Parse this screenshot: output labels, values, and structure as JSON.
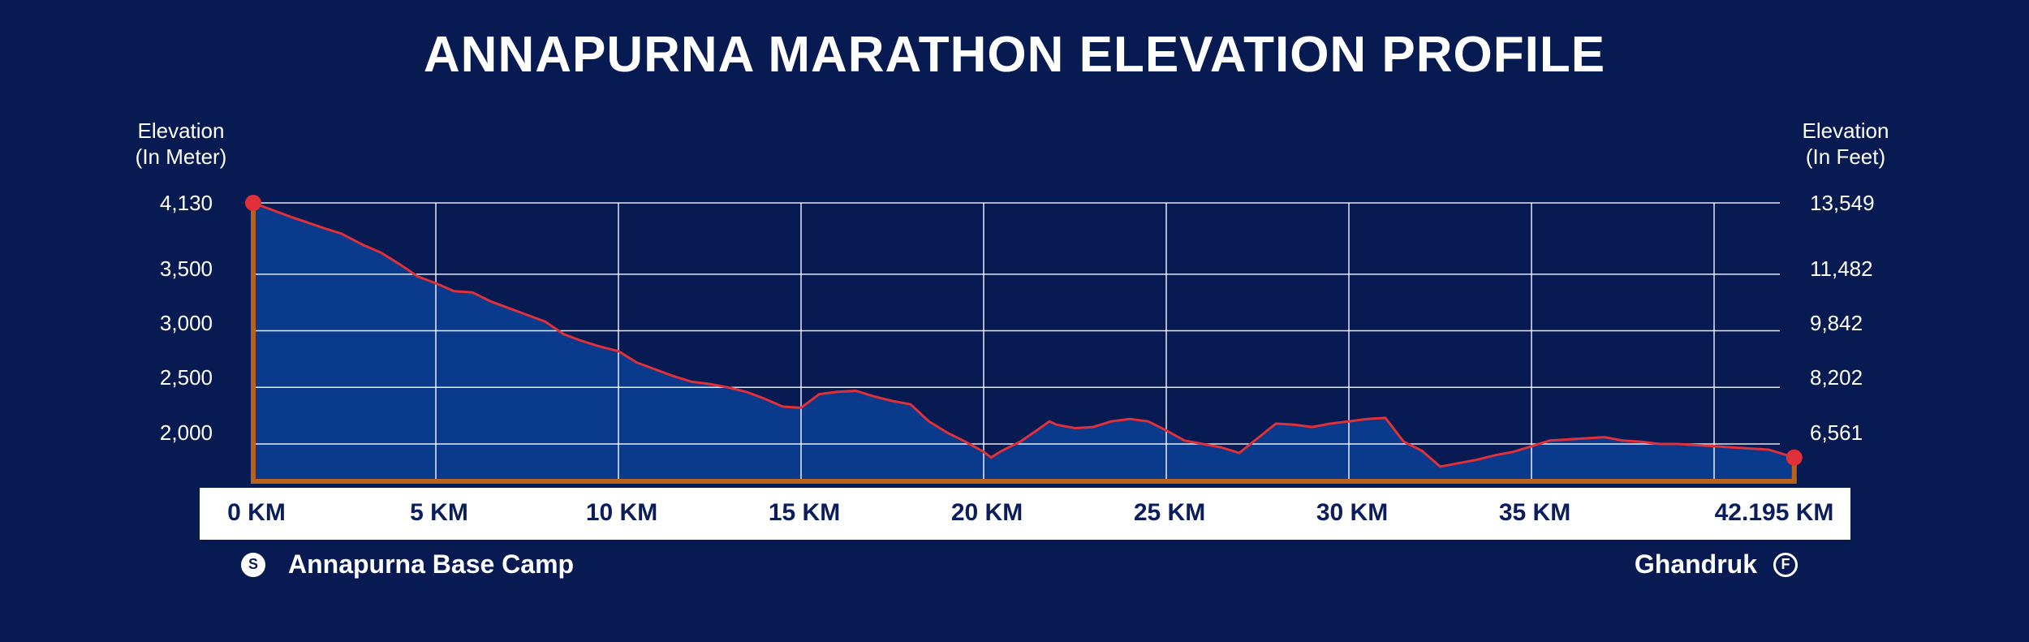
{
  "title": "ANNAPURNA MARATHON ELEVATION PROFILE",
  "colors": {
    "background": "#081a52",
    "area_fill": "#0a3a8c",
    "line": "#e0303a",
    "axis": "#b8621e",
    "grid": "#ffffff",
    "marker": "#e0303a"
  },
  "left_axis": {
    "title_line1": "Elevation",
    "title_line2": "(In Meter)",
    "ticks": [
      "4,130",
      "3,500",
      "3,000",
      "2,500",
      "2,000"
    ]
  },
  "right_axis": {
    "title_line1": "Elevation",
    "title_line2": "(In Feet)",
    "ticks": [
      "13,549",
      "11,482",
      "9,842",
      "8,202",
      "6,561"
    ]
  },
  "x_axis": {
    "labels": [
      "0 KM",
      "5 KM",
      "10 KM",
      "15 KM",
      "20 KM",
      "25 KM",
      "30 KM",
      "35 KM",
      "42.195 KM"
    ]
  },
  "start": {
    "badge": "S",
    "name": "Annapurna Base Camp"
  },
  "finish": {
    "badge": "F",
    "name": "Ghandruk"
  },
  "chart_data": {
    "type": "area",
    "xlabel": "",
    "ylabel": "Elevation (In Meter)",
    "ylim": [
      1670,
      4130
    ],
    "xlim": [
      0,
      42.195
    ],
    "x_ticks": [
      0,
      5,
      10,
      15,
      20,
      25,
      30,
      35,
      40
    ],
    "y_ticks_m": [
      4130,
      3500,
      3000,
      2500,
      2000
    ],
    "y_ticks_ft": [
      13549,
      11482,
      9842,
      8202,
      6561
    ],
    "grid": true,
    "series": [
      {
        "x": [
          0,
          1,
          2,
          2.4,
          3,
          3.5,
          4,
          4.5,
          5,
          5.5,
          6,
          6.5,
          7,
          7.5,
          8,
          8.5,
          9,
          9.5,
          10,
          10.5,
          11,
          11.5,
          12,
          12.5,
          13,
          13.5,
          14,
          14.5,
          15,
          15.5,
          16,
          16.5,
          17,
          17.5,
          18,
          18.5,
          19,
          19.5,
          20,
          20.2,
          20.5,
          21,
          21.5,
          21.8,
          22,
          22.5,
          23,
          23.5,
          24,
          24.5,
          25,
          25.5,
          26,
          26.5,
          27,
          27.5,
          28,
          28.5,
          29,
          29.5,
          30,
          30.5,
          31,
          31.5,
          32,
          32.5,
          33,
          33.5,
          34,
          34.5,
          35,
          35.5,
          36,
          36.5,
          37,
          37.5,
          38,
          38.5,
          39,
          39.5,
          40,
          40.5,
          41,
          41.5,
          42.195
        ],
        "y": [
          4130,
          4010,
          3900,
          3860,
          3760,
          3690,
          3590,
          3480,
          3420,
          3350,
          3340,
          3260,
          3200,
          3140,
          3080,
          2970,
          2910,
          2860,
          2820,
          2720,
          2660,
          2600,
          2550,
          2530,
          2500,
          2460,
          2400,
          2330,
          2320,
          2440,
          2460,
          2470,
          2420,
          2380,
          2350,
          2200,
          2100,
          2020,
          1930,
          1880,
          1940,
          2020,
          2130,
          2200,
          2170,
          2140,
          2150,
          2200,
          2220,
          2200,
          2120,
          2030,
          2000,
          1970,
          1920,
          2050,
          2180,
          2170,
          2150,
          2180,
          2200,
          2220,
          2230,
          2020,
          1940,
          1800,
          1830,
          1860,
          1900,
          1930,
          1980,
          2030,
          2040,
          2050,
          2060,
          2030,
          2020,
          2000,
          2000,
          1990,
          1980,
          1970,
          1960,
          1950,
          1880
        ]
      }
    ]
  }
}
